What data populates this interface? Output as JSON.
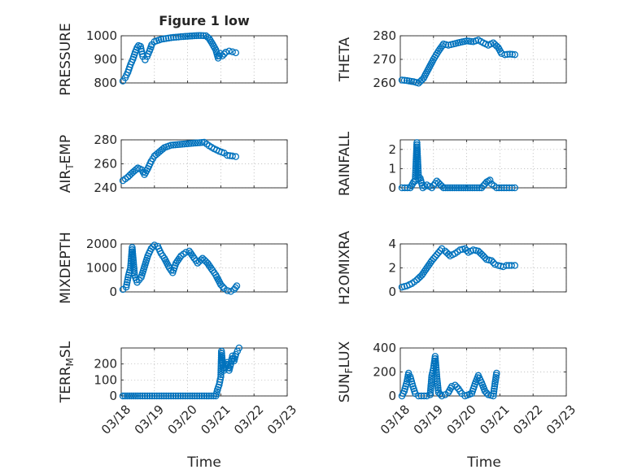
{
  "figure": {
    "title": "Figure 1 low",
    "xlabel": "Time"
  },
  "chart_data": [
    {
      "type": "scatter",
      "ylabel": "PRESSURE",
      "ylim": [
        800,
        1000
      ],
      "yticks": [
        800,
        900,
        1000
      ],
      "xlim": [
        0,
        5
      ],
      "xticks": [
        "03/18",
        "03/19",
        "03/20",
        "03/21",
        "03/22",
        "03/23"
      ],
      "grid": true,
      "marker_color": "#0072bd",
      "points": [
        [
          0.05,
          808
        ],
        [
          0.12,
          822
        ],
        [
          0.2,
          845
        ],
        [
          0.28,
          878
        ],
        [
          0.35,
          900
        ],
        [
          0.42,
          930
        ],
        [
          0.48,
          950
        ],
        [
          0.52,
          958
        ],
        [
          0.58,
          955
        ],
        [
          0.65,
          912
        ],
        [
          0.72,
          898
        ],
        [
          0.78,
          912
        ],
        [
          0.85,
          935
        ],
        [
          0.92,
          962
        ],
        [
          1.0,
          975
        ],
        [
          1.2,
          985
        ],
        [
          1.5,
          992
        ],
        [
          1.8,
          996
        ],
        [
          2.0,
          998
        ],
        [
          2.2,
          1000
        ],
        [
          2.4,
          1001
        ],
        [
          2.55,
          1000
        ],
        [
          2.65,
          988
        ],
        [
          2.75,
          965
        ],
        [
          2.85,
          940
        ],
        [
          2.92,
          905
        ],
        [
          2.98,
          925
        ],
        [
          3.05,
          915
        ],
        [
          3.15,
          930
        ],
        [
          3.25,
          935
        ],
        [
          3.35,
          932
        ],
        [
          3.45,
          928
        ]
      ]
    },
    {
      "type": "scatter",
      "ylabel": "THETA",
      "ylim": [
        260,
        280
      ],
      "yticks": [
        260,
        270,
        280
      ],
      "xlim": [
        0,
        5
      ],
      "xticks": [
        "03/18",
        "03/19",
        "03/20",
        "03/21",
        "03/22",
        "03/23"
      ],
      "grid": true,
      "marker_color": "#0072bd",
      "points": [
        [
          0.05,
          261.2
        ],
        [
          0.2,
          261
        ],
        [
          0.4,
          260.5
        ],
        [
          0.55,
          259.9
        ],
        [
          0.7,
          262
        ],
        [
          0.85,
          266
        ],
        [
          1.0,
          270
        ],
        [
          1.15,
          273.5
        ],
        [
          1.3,
          276.5
        ],
        [
          1.45,
          276
        ],
        [
          1.6,
          276.5
        ],
        [
          1.8,
          277.2
        ],
        [
          2.0,
          277.8
        ],
        [
          2.2,
          277.5
        ],
        [
          2.35,
          278.2
        ],
        [
          2.5,
          277
        ],
        [
          2.65,
          276
        ],
        [
          2.8,
          277
        ],
        [
          2.95,
          275
        ],
        [
          3.05,
          272.5
        ],
        [
          3.15,
          272
        ],
        [
          3.3,
          272.2
        ],
        [
          3.45,
          272
        ]
      ]
    },
    {
      "type": "scatter",
      "ylabel": "AIR_TEMP",
      "ylim": [
        240,
        280
      ],
      "yticks": [
        240,
        260,
        280
      ],
      "xlim": [
        0,
        5
      ],
      "xticks": [
        "03/18",
        "03/19",
        "03/20",
        "03/21",
        "03/22",
        "03/23"
      ],
      "grid": true,
      "marker_color": "#0072bd",
      "points": [
        [
          0.05,
          246
        ],
        [
          0.2,
          249
        ],
        [
          0.35,
          253
        ],
        [
          0.5,
          256.5
        ],
        [
          0.62,
          255
        ],
        [
          0.7,
          251
        ],
        [
          0.8,
          256
        ],
        [
          0.9,
          262
        ],
        [
          1.0,
          266.5
        ],
        [
          1.15,
          270
        ],
        [
          1.3,
          273.5
        ],
        [
          1.5,
          275.5
        ],
        [
          1.7,
          276
        ],
        [
          1.9,
          276.5
        ],
        [
          2.1,
          277
        ],
        [
          2.3,
          277.5
        ],
        [
          2.5,
          278
        ],
        [
          2.65,
          275
        ],
        [
          2.8,
          272.5
        ],
        [
          2.95,
          270.5
        ],
        [
          3.1,
          269
        ],
        [
          3.2,
          267
        ],
        [
          3.35,
          266.5
        ],
        [
          3.45,
          266
        ]
      ]
    },
    {
      "type": "scatter",
      "ylabel": "RAINFALL",
      "ylim": [
        0,
        2.5
      ],
      "yticks": [
        0,
        1,
        2
      ],
      "xlim": [
        0,
        5
      ],
      "xticks": [
        "03/18",
        "03/19",
        "03/20",
        "03/21",
        "03/22",
        "03/23"
      ],
      "grid": true,
      "marker_color": "#0072bd",
      "points": [
        [
          0.05,
          0
        ],
        [
          0.3,
          0
        ],
        [
          0.4,
          0.3
        ],
        [
          0.45,
          0.35
        ],
        [
          0.5,
          2.35
        ],
        [
          0.55,
          0.45
        ],
        [
          0.6,
          0.5
        ],
        [
          0.68,
          0
        ],
        [
          0.8,
          0.15
        ],
        [
          0.95,
          0
        ],
        [
          1.1,
          0.35
        ],
        [
          1.3,
          0
        ],
        [
          1.7,
          0
        ],
        [
          2.1,
          0
        ],
        [
          2.45,
          0
        ],
        [
          2.6,
          0.3
        ],
        [
          2.65,
          0.35
        ],
        [
          2.7,
          0.4
        ],
        [
          2.75,
          0.2
        ],
        [
          2.9,
          0
        ],
        [
          3.2,
          0
        ],
        [
          3.45,
          0
        ]
      ]
    },
    {
      "type": "scatter",
      "ylabel": "MIXDEPTH",
      "ylim": [
        0,
        2000
      ],
      "yticks": [
        0,
        1000,
        2000
      ],
      "xlim": [
        0,
        5
      ],
      "xticks": [
        "03/18",
        "03/19",
        "03/20",
        "03/21",
        "03/22",
        "03/23"
      ],
      "grid": true,
      "marker_color": "#0072bd",
      "points": [
        [
          0.05,
          100
        ],
        [
          0.15,
          200
        ],
        [
          0.22,
          700
        ],
        [
          0.28,
          1000
        ],
        [
          0.33,
          1850
        ],
        [
          0.4,
          700
        ],
        [
          0.48,
          400
        ],
        [
          0.6,
          600
        ],
        [
          0.7,
          1050
        ],
        [
          0.8,
          1500
        ],
        [
          0.9,
          1800
        ],
        [
          1.0,
          1950
        ],
        [
          1.1,
          1900
        ],
        [
          1.2,
          1600
        ],
        [
          1.3,
          1400
        ],
        [
          1.45,
          1000
        ],
        [
          1.55,
          800
        ],
        [
          1.65,
          1200
        ],
        [
          1.8,
          1500
        ],
        [
          1.95,
          1650
        ],
        [
          2.05,
          1700
        ],
        [
          2.2,
          1400
        ],
        [
          2.3,
          1200
        ],
        [
          2.45,
          1400
        ],
        [
          2.6,
          1200
        ],
        [
          2.75,
          900
        ],
        [
          2.85,
          700
        ],
        [
          3.0,
          300
        ],
        [
          3.1,
          150
        ],
        [
          3.2,
          50
        ],
        [
          3.3,
          20
        ],
        [
          3.4,
          100
        ],
        [
          3.48,
          250
        ]
      ]
    },
    {
      "type": "scatter",
      "ylabel": "H2OMIXRA",
      "ylim": [
        0,
        4
      ],
      "yticks": [
        0,
        2,
        4
      ],
      "xlim": [
        0,
        5
      ],
      "xticks": [
        "03/18",
        "03/19",
        "03/20",
        "03/21",
        "03/22",
        "03/23"
      ],
      "grid": true,
      "marker_color": "#0072bd",
      "points": [
        [
          0.05,
          0.4
        ],
        [
          0.2,
          0.5
        ],
        [
          0.35,
          0.7
        ],
        [
          0.5,
          1.0
        ],
        [
          0.65,
          1.4
        ],
        [
          0.8,
          2.0
        ],
        [
          0.95,
          2.6
        ],
        [
          1.1,
          3.1
        ],
        [
          1.25,
          3.6
        ],
        [
          1.35,
          3.4
        ],
        [
          1.5,
          3.0
        ],
        [
          1.65,
          3.2
        ],
        [
          1.8,
          3.5
        ],
        [
          1.95,
          3.6
        ],
        [
          2.05,
          3.3
        ],
        [
          2.2,
          3.5
        ],
        [
          2.35,
          3.4
        ],
        [
          2.5,
          3.0
        ],
        [
          2.6,
          2.7
        ],
        [
          2.75,
          2.6
        ],
        [
          2.85,
          2.3
        ],
        [
          2.95,
          2.2
        ],
        [
          3.1,
          2.1
        ],
        [
          3.2,
          2.2
        ],
        [
          3.35,
          2.2
        ],
        [
          3.45,
          2.2
        ]
      ]
    },
    {
      "type": "scatter",
      "ylabel": "TERR_MSL",
      "ylim": [
        0,
        300
      ],
      "yticks": [
        0,
        100,
        200
      ],
      "xlim": [
        0,
        5
      ],
      "xticks": [
        "03/18",
        "03/19",
        "03/20",
        "03/21",
        "03/22",
        "03/23"
      ],
      "grid": true,
      "marker_color": "#0072bd",
      "points": [
        [
          0.05,
          0
        ],
        [
          0.5,
          0
        ],
        [
          1.0,
          0
        ],
        [
          1.5,
          0
        ],
        [
          2.0,
          0
        ],
        [
          2.5,
          0
        ],
        [
          2.85,
          0
        ],
        [
          2.9,
          40
        ],
        [
          2.95,
          70
        ],
        [
          3.0,
          120
        ],
        [
          3.02,
          280
        ],
        [
          3.05,
          210
        ],
        [
          3.1,
          160
        ],
        [
          3.2,
          210
        ],
        [
          3.25,
          160
        ],
        [
          3.3,
          200
        ],
        [
          3.35,
          250
        ],
        [
          3.4,
          220
        ],
        [
          3.45,
          260
        ],
        [
          3.5,
          280
        ],
        [
          3.55,
          300
        ]
      ]
    },
    {
      "type": "scatter",
      "ylabel": "SUN_FLUX",
      "ylim": [
        0,
        400
      ],
      "yticks": [
        0,
        200,
        400
      ],
      "xlim": [
        0,
        5
      ],
      "xticks": [
        "03/18",
        "03/19",
        "03/20",
        "03/21",
        "03/22",
        "03/23"
      ],
      "grid": true,
      "marker_color": "#0072bd",
      "points": [
        [
          0.05,
          0
        ],
        [
          0.12,
          40
        ],
        [
          0.2,
          120
        ],
        [
          0.25,
          190
        ],
        [
          0.3,
          160
        ],
        [
          0.38,
          80
        ],
        [
          0.45,
          20
        ],
        [
          0.55,
          0
        ],
        [
          0.8,
          0
        ],
        [
          0.9,
          10
        ],
        [
          0.95,
          170
        ],
        [
          1.0,
          230
        ],
        [
          1.05,
          330
        ],
        [
          1.1,
          160
        ],
        [
          1.15,
          30
        ],
        [
          1.25,
          0
        ],
        [
          1.35,
          10
        ],
        [
          1.45,
          30
        ],
        [
          1.55,
          80
        ],
        [
          1.65,
          90
        ],
        [
          1.75,
          60
        ],
        [
          1.85,
          20
        ],
        [
          1.95,
          0
        ],
        [
          2.15,
          20
        ],
        [
          2.25,
          100
        ],
        [
          2.35,
          170
        ],
        [
          2.45,
          110
        ],
        [
          2.55,
          40
        ],
        [
          2.65,
          10
        ],
        [
          2.8,
          0
        ],
        [
          2.85,
          100
        ],
        [
          2.9,
          190
        ]
      ]
    }
  ]
}
